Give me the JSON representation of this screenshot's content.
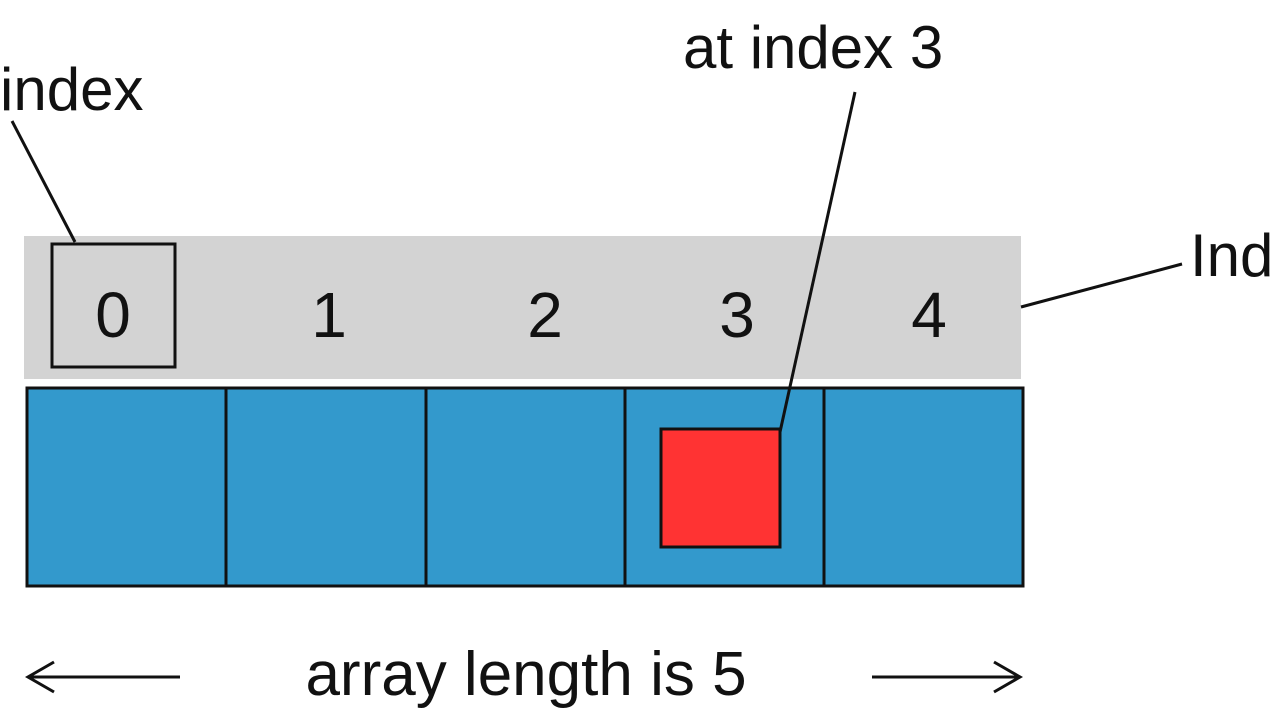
{
  "labels": {
    "first_index": "index",
    "element_at": "at index 3",
    "indices_side": "Ind",
    "length_caption": "array length is 5"
  },
  "array": {
    "indices": [
      "0",
      "1",
      "2",
      "3",
      "4"
    ],
    "highlighted_index": 3,
    "boxed_index": 0
  },
  "colors": {
    "index_band": "#d3d3d3",
    "cell_fill": "#3399cc",
    "element_fill": "#ff3333",
    "stroke": "#111111"
  }
}
